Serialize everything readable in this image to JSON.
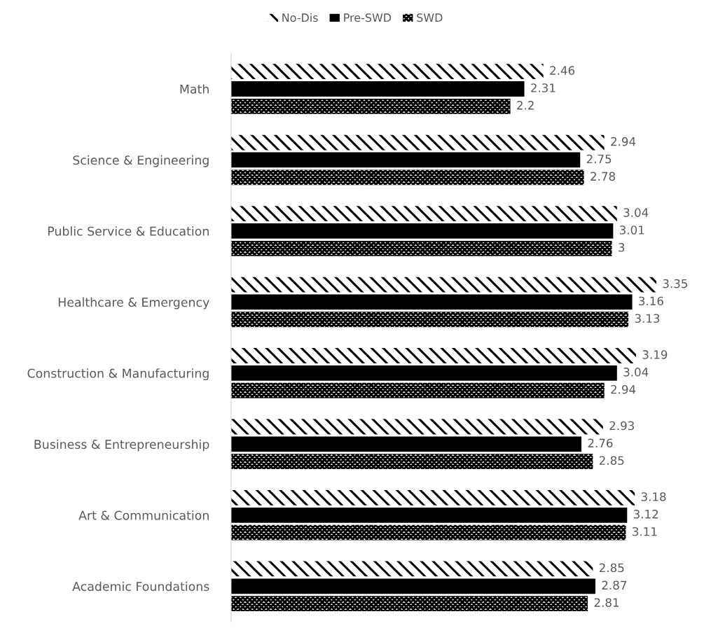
{
  "chart_data": {
    "type": "bar",
    "orientation": "horizontal",
    "categories": [
      "Math",
      "Science & Engineering",
      "Public Service & Education",
      "Healthcare & Emergency",
      "Construction & Manufacturing",
      "Business & Entrepreneurship",
      "Art & Communication",
      "Academic Foundations"
    ],
    "series": [
      {
        "name": "No-Dis",
        "color": "#000000",
        "values": [
          2.46,
          2.94,
          3.04,
          3.35,
          3.19,
          2.93,
          3.18,
          2.85
        ]
      },
      {
        "name": "Pre-SWD",
        "color": "#000000",
        "values": [
          2.31,
          2.75,
          3.01,
          3.16,
          3.04,
          2.76,
          3.12,
          2.87
        ]
      },
      {
        "name": "SWD",
        "color": "#000000",
        "values": [
          2.2,
          2.78,
          3,
          3.13,
          2.94,
          2.85,
          3.11,
          2.81
        ]
      }
    ],
    "tick_labels": "y",
    "data_labels": true,
    "legend": "top",
    "grid": false
  }
}
